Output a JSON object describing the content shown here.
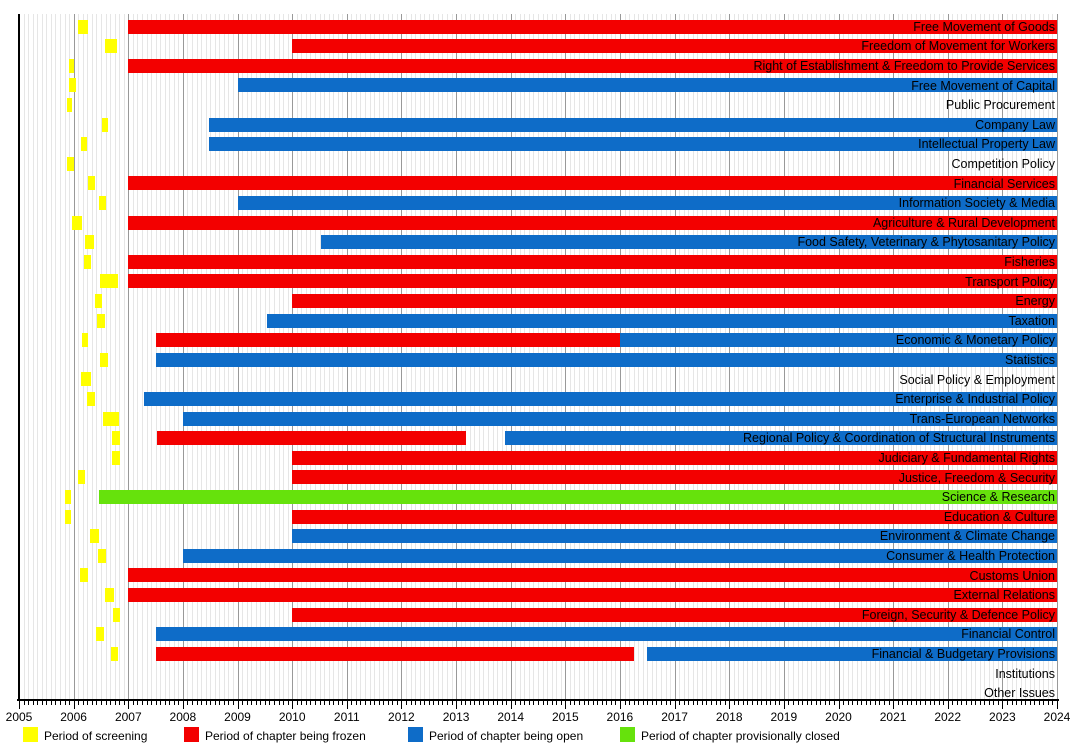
{
  "chart_data": {
    "type": "gantt",
    "title": "",
    "x_axis": {
      "min": 2005,
      "max": 2024,
      "year_ticks": [
        2005,
        2006,
        2007,
        2008,
        2009,
        2010,
        2011,
        2012,
        2013,
        2014,
        2015,
        2016,
        2017,
        2018,
        2019,
        2020,
        2021,
        2022,
        2023,
        2024
      ],
      "minor_tick_interval": "month",
      "grid": true
    },
    "grid_colors": {
      "year_line": "#999999",
      "month_line": "#e6e6e6"
    },
    "legend_position": "bottom",
    "legend": [
      {
        "key": "screening",
        "label": "Period of screening",
        "color": "#ffff00"
      },
      {
        "key": "frozen",
        "label": "Period of chapter being frozen",
        "color": "#f30000"
      },
      {
        "key": "open",
        "label": "Period of chapter being open",
        "color": "#0e6cc8"
      },
      {
        "key": "closed",
        "label": "Period of chapter provisionally closed",
        "color": "#66e20c"
      }
    ],
    "rows": [
      {
        "label": "Free Movement of Goods",
        "segments": [
          {
            "status": "screening",
            "start": 2006.07,
            "end": 2006.26
          },
          {
            "status": "frozen",
            "start": 2007.0,
            "end": 2024.0
          }
        ]
      },
      {
        "label": "Freedom of Movement for Workers",
        "segments": [
          {
            "status": "screening",
            "start": 2006.57,
            "end": 2006.79
          },
          {
            "status": "frozen",
            "start": 2010.0,
            "end": 2024.0
          }
        ]
      },
      {
        "label": "Right of Establishment & Freedom to Provide Services",
        "segments": [
          {
            "status": "screening",
            "start": 2005.91,
            "end": 2006.01
          },
          {
            "status": "frozen",
            "start": 2007.0,
            "end": 2024.0
          }
        ]
      },
      {
        "label": "Free Movement of Capital",
        "segments": [
          {
            "status": "screening",
            "start": 2005.91,
            "end": 2006.04
          },
          {
            "status": "open",
            "start": 2009.0,
            "end": 2024.0
          }
        ]
      },
      {
        "label": "Public Procurement",
        "segments": [
          {
            "status": "screening",
            "start": 2005.88,
            "end": 2005.97
          }
        ]
      },
      {
        "label": "Company Law",
        "segments": [
          {
            "status": "screening",
            "start": 2006.51,
            "end": 2006.62
          },
          {
            "status": "open",
            "start": 2008.47,
            "end": 2024.0
          }
        ]
      },
      {
        "label": "Intellectual Property Law",
        "segments": [
          {
            "status": "screening",
            "start": 2006.13,
            "end": 2006.24
          },
          {
            "status": "open",
            "start": 2008.47,
            "end": 2024.0
          }
        ]
      },
      {
        "label": "Competition Policy",
        "segments": [
          {
            "status": "screening",
            "start": 2005.88,
            "end": 2006.01
          }
        ]
      },
      {
        "label": "Financial Services",
        "segments": [
          {
            "status": "screening",
            "start": 2006.26,
            "end": 2006.39
          },
          {
            "status": "frozen",
            "start": 2007.0,
            "end": 2024.0
          }
        ]
      },
      {
        "label": "Information Society & Media",
        "segments": [
          {
            "status": "screening",
            "start": 2006.46,
            "end": 2006.59
          },
          {
            "status": "open",
            "start": 2009.0,
            "end": 2024.0
          }
        ]
      },
      {
        "label": "Agriculture & Rural Development",
        "segments": [
          {
            "status": "screening",
            "start": 2005.97,
            "end": 2006.15
          },
          {
            "status": "frozen",
            "start": 2007.0,
            "end": 2024.0
          }
        ]
      },
      {
        "label": "Food Safety, Veterinary & Phytosanitary Policy",
        "segments": [
          {
            "status": "screening",
            "start": 2006.21,
            "end": 2006.37
          },
          {
            "status": "open",
            "start": 2010.52,
            "end": 2024.0
          }
        ]
      },
      {
        "label": "Fisheries",
        "segments": [
          {
            "status": "screening",
            "start": 2006.19,
            "end": 2006.32
          },
          {
            "status": "frozen",
            "start": 2007.0,
            "end": 2024.0
          }
        ]
      },
      {
        "label": "Transport Policy",
        "segments": [
          {
            "status": "screening",
            "start": 2006.48,
            "end": 2006.82
          },
          {
            "status": "frozen",
            "start": 2007.0,
            "end": 2024.0
          }
        ]
      },
      {
        "label": "Energy",
        "segments": [
          {
            "status": "screening",
            "start": 2006.39,
            "end": 2006.52
          },
          {
            "status": "frozen",
            "start": 2010.0,
            "end": 2024.0
          }
        ]
      },
      {
        "label": "Taxation",
        "segments": [
          {
            "status": "screening",
            "start": 2006.43,
            "end": 2006.57
          },
          {
            "status": "open",
            "start": 2009.53,
            "end": 2024.0
          }
        ]
      },
      {
        "label": "Economic & Monetary Policy",
        "segments": [
          {
            "status": "screening",
            "start": 2006.15,
            "end": 2006.26
          },
          {
            "status": "frozen",
            "start": 2007.5,
            "end": 2016.0
          },
          {
            "status": "open",
            "start": 2016.0,
            "end": 2024.0
          }
        ]
      },
      {
        "label": "Statistics",
        "segments": [
          {
            "status": "screening",
            "start": 2006.48,
            "end": 2006.63
          },
          {
            "status": "open",
            "start": 2007.5,
            "end": 2024.0
          }
        ]
      },
      {
        "label": "Social Policy & Employment",
        "segments": [
          {
            "status": "screening",
            "start": 2006.13,
            "end": 2006.32
          }
        ]
      },
      {
        "label": "Enterprise & Industrial Policy",
        "segments": [
          {
            "status": "screening",
            "start": 2006.24,
            "end": 2006.4
          },
          {
            "status": "open",
            "start": 2007.29,
            "end": 2024.0
          }
        ]
      },
      {
        "label": "Trans-European Networks",
        "segments": [
          {
            "status": "screening",
            "start": 2006.54,
            "end": 2006.83
          },
          {
            "status": "open",
            "start": 2008.0,
            "end": 2024.0
          }
        ]
      },
      {
        "label": "Regional Policy & Coordination of Structural Instruments",
        "segments": [
          {
            "status": "screening",
            "start": 2006.7,
            "end": 2006.85
          },
          {
            "status": "frozen",
            "start": 2007.52,
            "end": 2013.19
          },
          {
            "status": "open",
            "start": 2013.9,
            "end": 2024.0
          }
        ]
      },
      {
        "label": "Judiciary & Fundamental Rights",
        "segments": [
          {
            "status": "screening",
            "start": 2006.7,
            "end": 2006.85
          },
          {
            "status": "frozen",
            "start": 2010.0,
            "end": 2024.0
          }
        ]
      },
      {
        "label": "Justice, Freedom & Security",
        "segments": [
          {
            "status": "screening",
            "start": 2006.08,
            "end": 2006.21
          },
          {
            "status": "frozen",
            "start": 2010.0,
            "end": 2024.0
          }
        ]
      },
      {
        "label": "Science & Research",
        "segments": [
          {
            "status": "screening",
            "start": 2005.84,
            "end": 2005.95
          },
          {
            "status": "closed",
            "start": 2006.46,
            "end": 2024.0
          }
        ]
      },
      {
        "label": "Education & Culture",
        "segments": [
          {
            "status": "screening",
            "start": 2005.84,
            "end": 2005.95
          },
          {
            "status": "frozen",
            "start": 2010.0,
            "end": 2024.0
          }
        ]
      },
      {
        "label": "Environment & Climate Change",
        "segments": [
          {
            "status": "screening",
            "start": 2006.3,
            "end": 2006.46
          },
          {
            "status": "open",
            "start": 2010.0,
            "end": 2024.0
          }
        ]
      },
      {
        "label": "Consumer & Health Protection",
        "segments": [
          {
            "status": "screening",
            "start": 2006.45,
            "end": 2006.59
          },
          {
            "status": "open",
            "start": 2008.0,
            "end": 2024.0
          }
        ]
      },
      {
        "label": "Customs Union",
        "segments": [
          {
            "status": "screening",
            "start": 2006.12,
            "end": 2006.26
          },
          {
            "status": "frozen",
            "start": 2007.0,
            "end": 2024.0
          }
        ]
      },
      {
        "label": "External Relations",
        "segments": [
          {
            "status": "screening",
            "start": 2006.57,
            "end": 2006.74
          },
          {
            "status": "frozen",
            "start": 2007.0,
            "end": 2024.0
          }
        ]
      },
      {
        "label": "Foreign, Security & Defence Policy",
        "segments": [
          {
            "status": "screening",
            "start": 2006.72,
            "end": 2006.85
          },
          {
            "status": "frozen",
            "start": 2010.0,
            "end": 2024.0
          }
        ]
      },
      {
        "label": "Financial Control",
        "segments": [
          {
            "status": "screening",
            "start": 2006.41,
            "end": 2006.55
          },
          {
            "status": "open",
            "start": 2007.5,
            "end": 2024.0
          }
        ]
      },
      {
        "label": "Financial & Budgetary Provisions",
        "segments": [
          {
            "status": "screening",
            "start": 2006.68,
            "end": 2006.81
          },
          {
            "status": "frozen",
            "start": 2007.5,
            "end": 2016.25
          },
          {
            "status": "open",
            "start": 2016.5,
            "end": 2024.0
          }
        ]
      },
      {
        "label": "Institutions",
        "segments": []
      },
      {
        "label": "Other Issues",
        "segments": []
      }
    ]
  }
}
